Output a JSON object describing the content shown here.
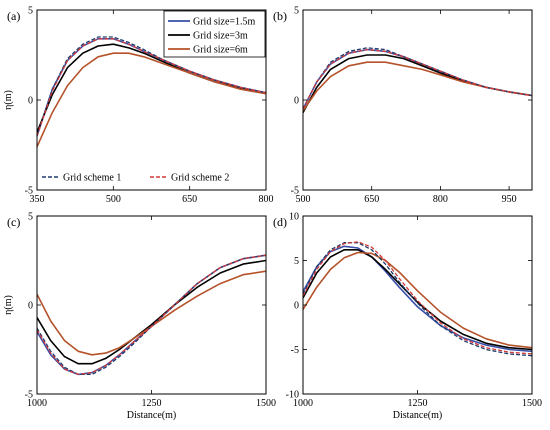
{
  "colors": {
    "blue": "#3a4fa8",
    "black": "#000000",
    "orange": "#b5522a",
    "red_dash": "#d23a3a",
    "navy_dash": "#1f3b6b"
  },
  "legend_grid": [
    "Grid size=1.5m",
    "Grid size=3m",
    "Grid size=6m"
  ],
  "legend_scheme": [
    "Grid scheme 1",
    "Grid scheme 2"
  ],
  "chart_data": [
    {
      "type": "line",
      "panel": "(a)",
      "ylabel": "η(m)",
      "xlabel": "",
      "xlim": [
        350,
        800
      ],
      "ylim": [
        -5,
        5
      ],
      "xticks": [
        350,
        500,
        650,
        800
      ],
      "yticks": [
        -5,
        0,
        5
      ],
      "series": [
        {
          "name": "Grid size=1.5m",
          "color": "blue",
          "style": "solid",
          "x": [
            350,
            380,
            410,
            440,
            470,
            500,
            530,
            560,
            600,
            650,
            700,
            750,
            800
          ],
          "y": [
            -2.0,
            0.6,
            2.2,
            3.0,
            3.4,
            3.4,
            3.1,
            2.7,
            2.2,
            1.6,
            1.1,
            0.7,
            0.4
          ]
        },
        {
          "name": "Grid size=3m",
          "color": "black",
          "style": "solid",
          "x": [
            350,
            380,
            410,
            440,
            470,
            500,
            530,
            560,
            600,
            650,
            700,
            750,
            800
          ],
          "y": [
            -1.8,
            0.3,
            1.8,
            2.6,
            3.0,
            3.1,
            2.9,
            2.6,
            2.1,
            1.5,
            1.0,
            0.65,
            0.4
          ]
        },
        {
          "name": "Grid size=6m",
          "color": "orange",
          "style": "solid",
          "x": [
            350,
            380,
            410,
            440,
            470,
            500,
            530,
            560,
            600,
            650,
            700,
            750,
            800
          ],
          "y": [
            -2.6,
            -0.7,
            0.8,
            1.8,
            2.4,
            2.6,
            2.6,
            2.4,
            2.0,
            1.5,
            1.0,
            0.6,
            0.35
          ]
        },
        {
          "name": "Grid scheme 1",
          "color": "navy_dash",
          "style": "dashed",
          "x": [
            350,
            380,
            410,
            440,
            470,
            500,
            530,
            560,
            600,
            650,
            700,
            750,
            800
          ],
          "y": [
            -2.0,
            0.6,
            2.3,
            3.1,
            3.5,
            3.5,
            3.2,
            2.8,
            2.2,
            1.6,
            1.1,
            0.7,
            0.4
          ]
        },
        {
          "name": "Grid scheme 2",
          "color": "red_dash",
          "style": "dashed",
          "x": [
            350,
            380,
            410,
            440,
            470,
            500,
            530,
            560,
            600,
            650,
            700,
            750,
            800
          ],
          "y": [
            -2.0,
            0.5,
            2.2,
            3.0,
            3.4,
            3.4,
            3.1,
            2.7,
            2.2,
            1.6,
            1.1,
            0.7,
            0.4
          ]
        }
      ]
    },
    {
      "type": "line",
      "panel": "(b)",
      "ylabel": "",
      "xlabel": "",
      "xlim": [
        500,
        1000
      ],
      "ylim": [
        -5,
        5
      ],
      "xticks": [
        500,
        650,
        800,
        950
      ],
      "yticks": [
        -5,
        0,
        5
      ],
      "series": [
        {
          "name": "Grid size=1.5m",
          "color": "blue",
          "style": "solid",
          "x": [
            500,
            530,
            560,
            600,
            640,
            680,
            720,
            760,
            800,
            850,
            900,
            950,
            1000
          ],
          "y": [
            -0.5,
            1.0,
            2.0,
            2.6,
            2.8,
            2.7,
            2.4,
            2.0,
            1.6,
            1.1,
            0.7,
            0.45,
            0.25
          ]
        },
        {
          "name": "Grid size=3m",
          "color": "black",
          "style": "solid",
          "x": [
            500,
            530,
            560,
            600,
            640,
            680,
            720,
            760,
            800,
            850,
            900,
            950,
            1000
          ],
          "y": [
            -0.7,
            0.7,
            1.7,
            2.3,
            2.5,
            2.5,
            2.3,
            1.9,
            1.5,
            1.05,
            0.7,
            0.45,
            0.25
          ]
        },
        {
          "name": "Grid size=6m",
          "color": "orange",
          "style": "solid",
          "x": [
            500,
            530,
            560,
            600,
            640,
            680,
            720,
            760,
            800,
            850,
            900,
            950,
            1000
          ],
          "y": [
            -0.6,
            0.5,
            1.3,
            1.9,
            2.1,
            2.1,
            1.9,
            1.7,
            1.4,
            1.0,
            0.7,
            0.45,
            0.25
          ]
        },
        {
          "name": "Grid scheme 1",
          "color": "navy_dash",
          "style": "dashed",
          "x": [
            500,
            530,
            560,
            600,
            640,
            680,
            720,
            760,
            800,
            850,
            900,
            950,
            1000
          ],
          "y": [
            -0.5,
            1.0,
            2.1,
            2.7,
            2.9,
            2.8,
            2.4,
            2.0,
            1.6,
            1.1,
            0.7,
            0.45,
            0.25
          ]
        },
        {
          "name": "Grid scheme 2",
          "color": "red_dash",
          "style": "dashed",
          "x": [
            500,
            530,
            560,
            600,
            640,
            680,
            720,
            760,
            800,
            850,
            900,
            950,
            1000
          ],
          "y": [
            -0.5,
            1.0,
            2.0,
            2.6,
            2.8,
            2.7,
            2.4,
            2.0,
            1.6,
            1.1,
            0.7,
            0.45,
            0.25
          ]
        }
      ]
    },
    {
      "type": "line",
      "panel": "(c)",
      "ylabel": "η(m)",
      "xlabel": "Distance(m)",
      "xlim": [
        1000,
        1500
      ],
      "ylim": [
        -5,
        5
      ],
      "xticks": [
        1000,
        1250,
        1500
      ],
      "yticks": [
        -5,
        0,
        5
      ],
      "series": [
        {
          "name": "Grid size=1.5m",
          "color": "blue",
          "style": "solid",
          "x": [
            1000,
            1030,
            1060,
            1090,
            1120,
            1150,
            1180,
            1210,
            1250,
            1300,
            1350,
            1400,
            1450,
            1500
          ],
          "y": [
            -1.5,
            -2.8,
            -3.6,
            -3.9,
            -3.8,
            -3.4,
            -2.8,
            -2.1,
            -1.2,
            0.0,
            1.2,
            2.1,
            2.6,
            2.8
          ]
        },
        {
          "name": "Grid size=3m",
          "color": "black",
          "style": "solid",
          "x": [
            1000,
            1030,
            1060,
            1090,
            1120,
            1150,
            1180,
            1210,
            1250,
            1300,
            1350,
            1400,
            1450,
            1500
          ],
          "y": [
            -0.7,
            -2.0,
            -2.9,
            -3.3,
            -3.3,
            -3.0,
            -2.5,
            -1.9,
            -1.1,
            0.0,
            1.0,
            1.8,
            2.3,
            2.5
          ]
        },
        {
          "name": "Grid size=6m",
          "color": "orange",
          "style": "solid",
          "x": [
            1000,
            1030,
            1060,
            1090,
            1120,
            1150,
            1180,
            1210,
            1250,
            1300,
            1350,
            1400,
            1450,
            1500
          ],
          "y": [
            0.6,
            -0.9,
            -2.0,
            -2.6,
            -2.8,
            -2.7,
            -2.4,
            -1.9,
            -1.2,
            -0.3,
            0.5,
            1.2,
            1.7,
            1.9
          ]
        },
        {
          "name": "Grid scheme 1",
          "color": "navy_dash",
          "style": "dashed",
          "x": [
            1000,
            1030,
            1060,
            1090,
            1120,
            1150,
            1180,
            1210,
            1250,
            1300,
            1350,
            1400,
            1450,
            1500
          ],
          "y": [
            -1.3,
            -2.6,
            -3.5,
            -3.9,
            -3.9,
            -3.5,
            -2.9,
            -2.2,
            -1.2,
            0.0,
            1.2,
            2.1,
            2.6,
            2.8
          ]
        },
        {
          "name": "Grid scheme 2",
          "color": "red_dash",
          "style": "dashed",
          "x": [
            1000,
            1030,
            1060,
            1090,
            1120,
            1150,
            1180,
            1210,
            1250,
            1300,
            1350,
            1400,
            1450,
            1500
          ],
          "y": [
            -1.4,
            -2.7,
            -3.6,
            -3.9,
            -3.8,
            -3.4,
            -2.8,
            -2.1,
            -1.2,
            0.0,
            1.2,
            2.1,
            2.6,
            2.8
          ]
        }
      ]
    },
    {
      "type": "line",
      "panel": "(d)",
      "ylabel": "",
      "xlabel": "Distance(m)",
      "xlim": [
        1000,
        1500
      ],
      "ylim": [
        -10,
        10
      ],
      "xticks": [
        1000,
        1250,
        1500
      ],
      "yticks": [
        -10,
        -5,
        0,
        5,
        10
      ],
      "series": [
        {
          "name": "Grid size=1.5m",
          "color": "blue",
          "style": "solid",
          "x": [
            1000,
            1030,
            1060,
            1090,
            1120,
            1150,
            1180,
            1210,
            1250,
            1300,
            1350,
            1400,
            1450,
            1500
          ],
          "y": [
            1.5,
            4.3,
            6.0,
            6.6,
            6.4,
            5.4,
            3.8,
            2.0,
            -0.2,
            -2.3,
            -3.7,
            -4.5,
            -5.0,
            -5.2
          ]
        },
        {
          "name": "Grid size=3m",
          "color": "black",
          "style": "solid",
          "x": [
            1000,
            1030,
            1060,
            1090,
            1120,
            1150,
            1180,
            1210,
            1250,
            1300,
            1350,
            1400,
            1450,
            1500
          ],
          "y": [
            0.8,
            3.6,
            5.4,
            6.2,
            6.2,
            5.4,
            4.0,
            2.4,
            0.3,
            -1.8,
            -3.3,
            -4.3,
            -4.8,
            -5.0
          ]
        },
        {
          "name": "Grid size=6m",
          "color": "orange",
          "style": "solid",
          "x": [
            1000,
            1030,
            1060,
            1090,
            1120,
            1150,
            1180,
            1210,
            1250,
            1300,
            1350,
            1400,
            1450,
            1500
          ],
          "y": [
            -0.5,
            2.0,
            4.0,
            5.3,
            5.9,
            5.8,
            5.0,
            3.7,
            1.6,
            -0.8,
            -2.6,
            -3.8,
            -4.5,
            -4.8
          ]
        },
        {
          "name": "Grid scheme 1",
          "color": "navy_dash",
          "style": "dashed",
          "x": [
            1000,
            1030,
            1060,
            1090,
            1120,
            1150,
            1180,
            1210,
            1250,
            1300,
            1350,
            1400,
            1450,
            1500
          ],
          "y": [
            1.2,
            4.3,
            6.2,
            7.0,
            7.0,
            6.2,
            4.6,
            2.6,
            0.2,
            -2.3,
            -4.0,
            -5.0,
            -5.5,
            -5.7
          ]
        },
        {
          "name": "Grid scheme 2",
          "color": "red_dash",
          "style": "dashed",
          "x": [
            1000,
            1030,
            1060,
            1090,
            1120,
            1150,
            1180,
            1210,
            1250,
            1300,
            1350,
            1400,
            1450,
            1500
          ],
          "y": [
            1.0,
            4.0,
            6.0,
            6.9,
            7.1,
            6.5,
            5.0,
            3.0,
            0.5,
            -2.0,
            -3.8,
            -4.8,
            -5.3,
            -5.5
          ]
        }
      ]
    }
  ]
}
